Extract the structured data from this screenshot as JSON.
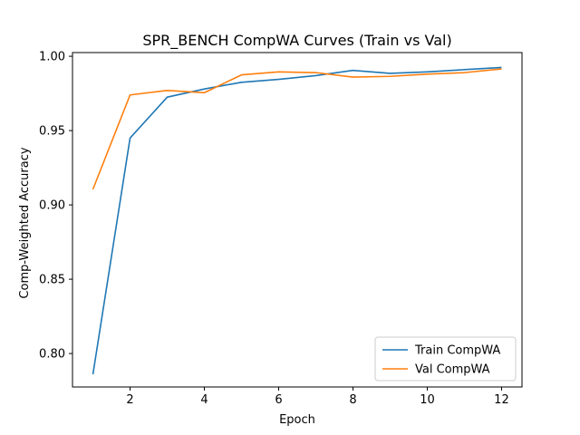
{
  "chart_data": {
    "type": "line",
    "title": "SPR_BENCH CompWA Curves (Train vs Val)",
    "xlabel": "Epoch",
    "ylabel": "Comp-Weighted Accuracy",
    "x": [
      1,
      2,
      3,
      4,
      5,
      6,
      7,
      8,
      9,
      10,
      11,
      12
    ],
    "xlim": [
      0.45,
      12.55
    ],
    "ylim": [
      0.7775,
      1.0025
    ],
    "xticks": [
      2,
      4,
      6,
      8,
      10,
      12
    ],
    "yticks": [
      0.8,
      0.85,
      0.9,
      0.95,
      1.0
    ],
    "ytick_labels": [
      "0.80",
      "0.85",
      "0.90",
      "0.95",
      "1.00"
    ],
    "grid": false,
    "legend_position": "lower-right",
    "series": [
      {
        "name": "Train CompWA",
        "color": "#1f77b4",
        "values": [
          0.786,
          0.945,
          0.9725,
          0.978,
          0.9825,
          0.9845,
          0.987,
          0.9905,
          0.9885,
          0.9895,
          0.991,
          0.9925
        ]
      },
      {
        "name": "Val CompWA",
        "color": "#ff7f0e",
        "values": [
          0.9105,
          0.974,
          0.977,
          0.9755,
          0.9875,
          0.9895,
          0.989,
          0.986,
          0.9865,
          0.988,
          0.989,
          0.9915
        ]
      }
    ]
  }
}
